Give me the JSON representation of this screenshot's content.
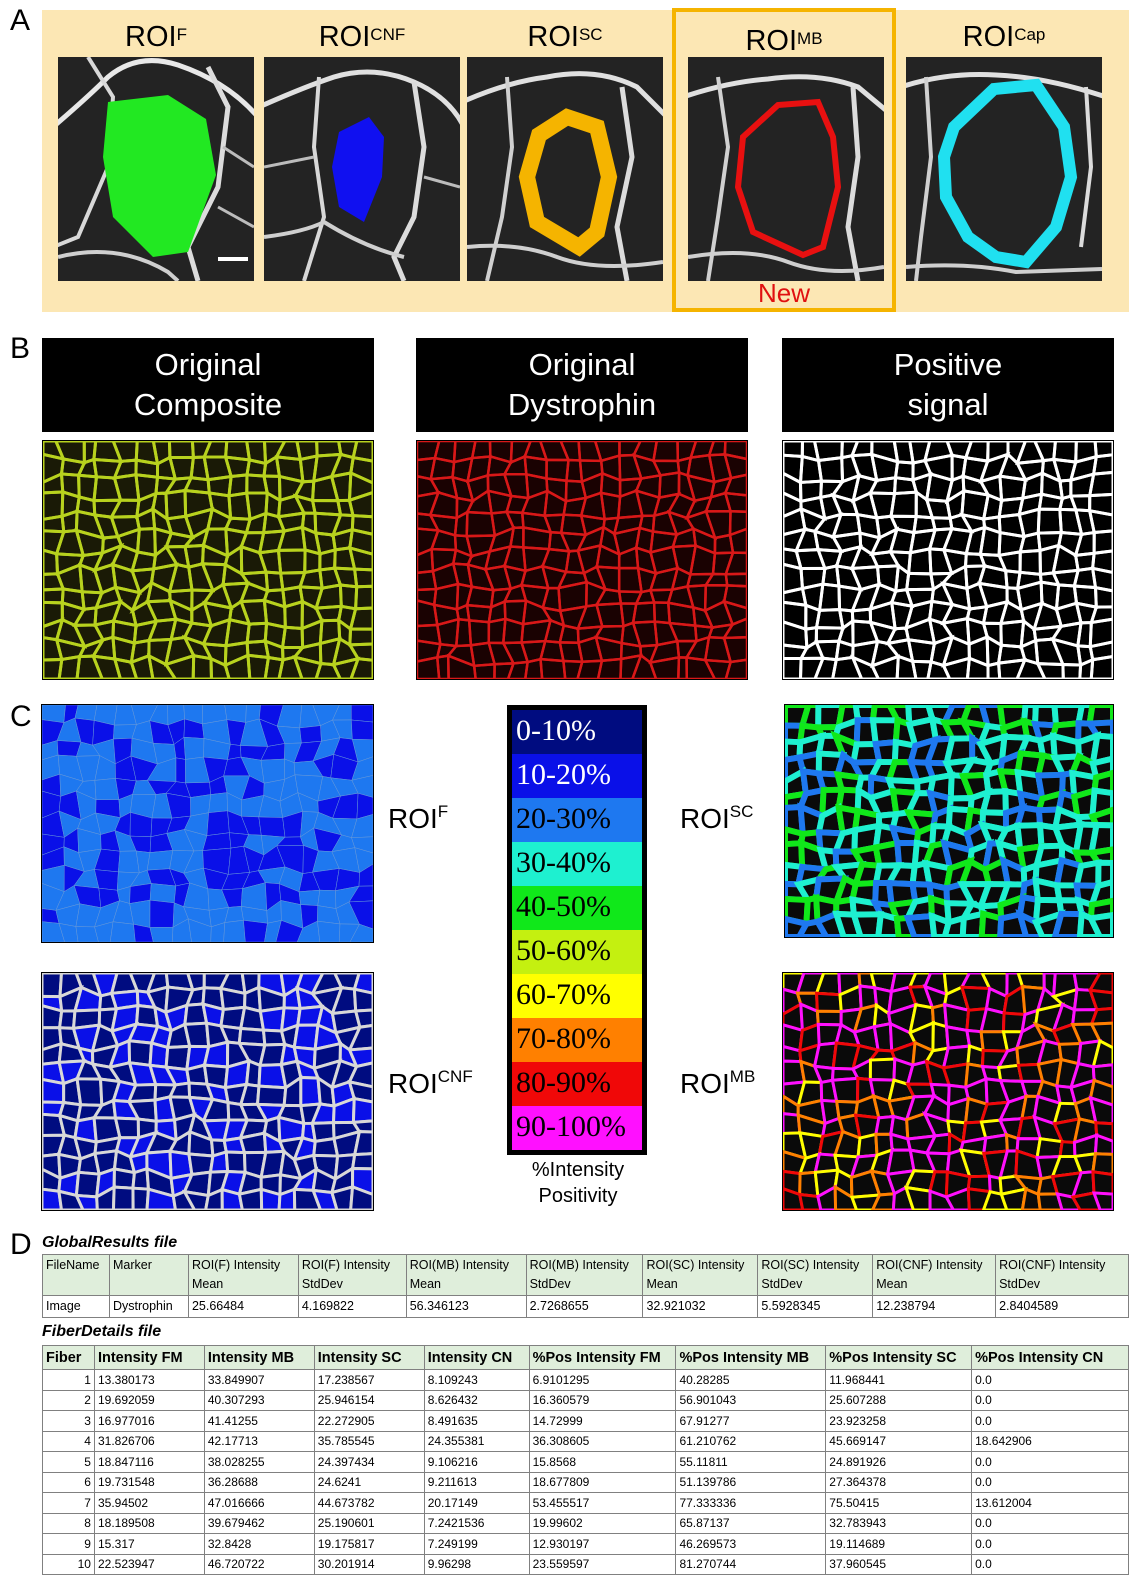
{
  "panel_letters": {
    "a": "A",
    "b": "B",
    "c": "C",
    "d": "D"
  },
  "panel_a": {
    "rois": [
      {
        "base": "ROI",
        "sup": "F",
        "color": "#22e822"
      },
      {
        "base": "ROI",
        "sup": "CNF",
        "color": "#1010f0"
      },
      {
        "base": "ROI",
        "sup": "SC",
        "color": "#f5b400"
      },
      {
        "base": "ROI",
        "sup": "MB",
        "color": "#e81010"
      },
      {
        "base": "ROI",
        "sup": "Cap",
        "color": "#20e0f0"
      }
    ],
    "new_label": "New",
    "highlight_color": "#f5b400"
  },
  "panel_b": {
    "headers": [
      {
        "line1": "Original",
        "line2": "Composite"
      },
      {
        "line1": "Original",
        "line2": "Dystrophin"
      },
      {
        "line1": "Positive",
        "line2": "signal"
      }
    ]
  },
  "panel_c": {
    "labels": {
      "f": {
        "base": "ROI",
        "sup": "F"
      },
      "sc": {
        "base": "ROI",
        "sup": "SC"
      },
      "cnf": {
        "base": "ROI",
        "sup": "CNF"
      },
      "mb": {
        "base": "ROI",
        "sup": "MB"
      }
    },
    "legend": [
      {
        "label": "0-10%",
        "color": "#000c80",
        "text_color": "#ffffff"
      },
      {
        "label": "10-20%",
        "color": "#0a10e8",
        "text_color": "#ffffff"
      },
      {
        "label": "20-30%",
        "color": "#1e78f0",
        "text_color": "#000000"
      },
      {
        "label": "30-40%",
        "color": "#1ef0d0",
        "text_color": "#000000"
      },
      {
        "label": "40-50%",
        "color": "#10e81a",
        "text_color": "#000000"
      },
      {
        "label": "50-60%",
        "color": "#c4f010",
        "text_color": "#000000"
      },
      {
        "label": "60-70%",
        "color": "#ffff00",
        "text_color": "#000000"
      },
      {
        "label": "70-80%",
        "color": "#ff8000",
        "text_color": "#000000"
      },
      {
        "label": "80-90%",
        "color": "#f00808",
        "text_color": "#000000"
      },
      {
        "label": "90-100%",
        "color": "#ff10ff",
        "text_color": "#000000"
      }
    ],
    "legend_caption_line1": "%Intensity",
    "legend_caption_line2": "Positivity"
  },
  "panel_d": {
    "global_title": "GlobalResults file",
    "global_headers": [
      "FileName",
      "Marker",
      "ROI(F) Intensity Mean",
      "ROI(F) Intensity StdDev",
      "ROI(MB) Intensity Mean",
      "ROI(MB) Intensity StdDev",
      "ROI(SC) Intensity Mean",
      "ROI(SC) Intensity StdDev",
      "ROI(CNF) Intensity Mean",
      "ROI(CNF) Intensity StdDev"
    ],
    "global_row": [
      "Image",
      "Dystrophin",
      "25.66484",
      "4.169822",
      "56.346123",
      "2.7268655",
      "32.921032",
      "5.5928345",
      "12.238794",
      "2.8404589"
    ],
    "fiber_title": "FiberDetails file",
    "fiber_headers": [
      "Fiber",
      "Intensity FM",
      "Intensity MB",
      "Intensity SC",
      "Intensity CN",
      "%Pos Intensity FM",
      "%Pos Intensity MB",
      "%Pos Intensity SC",
      "%Pos Intensity CN"
    ],
    "fiber_rows": [
      [
        "1",
        "13.380173",
        "33.849907",
        "17.238567",
        "8.109243",
        "6.9101295",
        "40.28285",
        "11.968441",
        "0.0"
      ],
      [
        "2",
        "19.692059",
        "40.307293",
        "25.946154",
        "8.626432",
        "16.360579",
        "56.901043",
        "25.607288",
        "0.0"
      ],
      [
        "3",
        "16.977016",
        "41.41255",
        "22.272905",
        "8.491635",
        "14.72999",
        "67.91277",
        "23.923258",
        "0.0"
      ],
      [
        "4",
        "31.826706",
        "42.17713",
        "35.785545",
        "24.355381",
        "36.308605",
        "61.210762",
        "45.669147",
        "18.642906"
      ],
      [
        "5",
        "18.847116",
        "38.028255",
        "24.397434",
        "9.106216",
        "15.8568",
        "55.11811",
        "24.891926",
        "0.0"
      ],
      [
        "6",
        "19.731548",
        "36.28688",
        "24.6241",
        "9.211613",
        "18.677809",
        "51.139786",
        "27.364378",
        "0.0"
      ],
      [
        "7",
        "35.94502",
        "47.016666",
        "44.673782",
        "20.17149",
        "53.455517",
        "77.333336",
        "75.50415",
        "13.612004"
      ],
      [
        "8",
        "18.189508",
        "39.679462",
        "25.190601",
        "7.2421536",
        "19.99602",
        "65.87137",
        "32.783943",
        "0.0"
      ],
      [
        "9",
        "15.317",
        "32.8428",
        "19.175817",
        "7.249199",
        "12.930197",
        "46.269573",
        "19.114689",
        "0.0"
      ],
      [
        "10",
        "22.523947",
        "46.720722",
        "30.201914",
        "9.96298",
        "23.559597",
        "81.270744",
        "37.960545",
        "0.0"
      ]
    ]
  }
}
